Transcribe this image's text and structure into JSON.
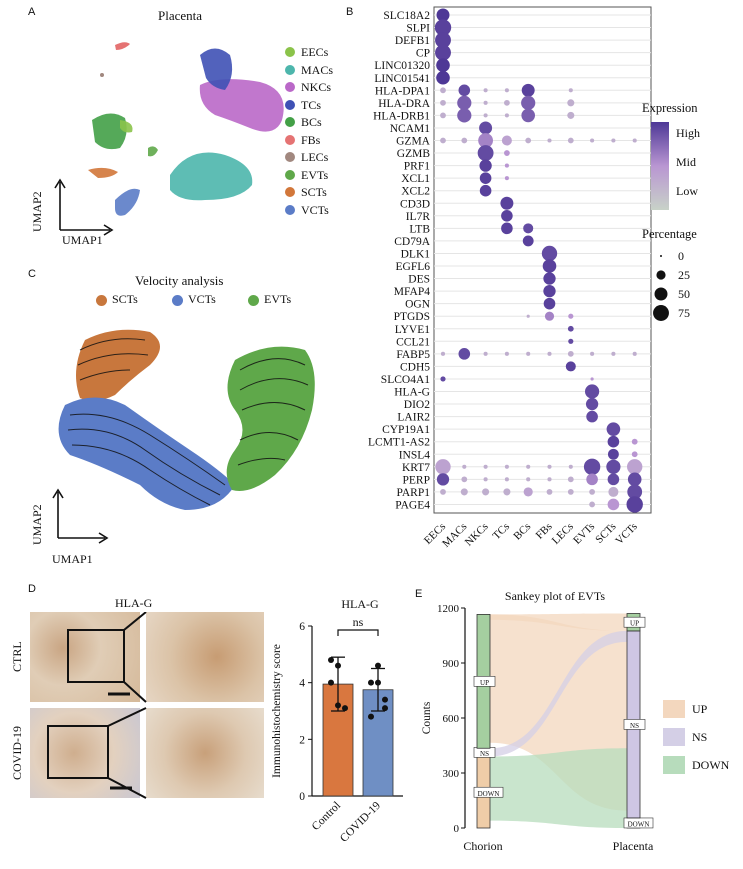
{
  "panels": {
    "A": {
      "letter": "A",
      "title": "Placenta",
      "xaxis": "UMAP1",
      "yaxis": "UMAP2",
      "legend": [
        {
          "name": "EECs",
          "color": "#8bc34a"
        },
        {
          "name": "MACs",
          "color": "#4db6ac"
        },
        {
          "name": "NKCs",
          "color": "#ba68c8"
        },
        {
          "name": "TCs",
          "color": "#3f51b5"
        },
        {
          "name": "BCs",
          "color": "#43a047"
        },
        {
          "name": "FBs",
          "color": "#e57373"
        },
        {
          "name": "LECs",
          "color": "#a1887f"
        },
        {
          "name": "EVTs",
          "color": "#5fa84a"
        },
        {
          "name": "SCTs",
          "color": "#d2773a"
        },
        {
          "name": "VCTs",
          "color": "#5b7cc7"
        }
      ]
    },
    "B": {
      "letter": "B"
    },
    "C": {
      "letter": "C",
      "title": "Velocity analysis",
      "xaxis": "UMAP1",
      "yaxis": "UMAP2",
      "legend": [
        {
          "name": "SCTs",
          "color": "#c8773d"
        },
        {
          "name": "VCTs",
          "color": "#5b7cc7"
        },
        {
          "name": "EVTs",
          "color": "#5fa84a"
        }
      ]
    },
    "D": {
      "letter": "D",
      "image_title": "HLA-G",
      "row_labels": [
        "CTRL",
        "COVID-19"
      ]
    },
    "E": {
      "letter": "E"
    }
  },
  "chart_data": [
    {
      "type": "dotplot",
      "id": "B",
      "genes": [
        "SLC18A2",
        "SLPI",
        "DEFB1",
        "CP",
        "LINC01320",
        "LINC01541",
        "HLA-DPA1",
        "HLA-DRA",
        "HLA-DRB1",
        "NCAM1",
        "GZMA",
        "GZMB",
        "PRF1",
        "XCL1",
        "XCL2",
        "CD3D",
        "IL7R",
        "LTB",
        "CD79A",
        "DLK1",
        "EGFL6",
        "DES",
        "MFAP4",
        "OGN",
        "PTGDS",
        "LYVE1",
        "CCL21",
        "FABP5",
        "CDH5",
        "SLCO4A1",
        "HLA-G",
        "DIO2",
        "LAIR2",
        "CYP19A1",
        "LCMT1-AS2",
        "INSL4",
        "KRT7",
        "PERP",
        "PARP1",
        "PAGE4"
      ],
      "cell_types": [
        "EECs",
        "MACs",
        "NKCs",
        "TCs",
        "BCs",
        "FBs",
        "LECs",
        "EVTs",
        "SCTs",
        "VCTs"
      ],
      "legend_expression": {
        "title": "Expression",
        "levels": [
          "High",
          "Mid",
          "Low"
        ]
      },
      "legend_percentage": {
        "title": "Percentage",
        "values": [
          "0",
          "25",
          "50",
          "75"
        ]
      },
      "dots": [
        [
          0,
          0,
          50,
          1.0
        ],
        [
          1,
          0,
          80,
          0.95
        ],
        [
          2,
          0,
          75,
          0.95
        ],
        [
          3,
          0,
          75,
          0.95
        ],
        [
          4,
          0,
          55,
          1.0
        ],
        [
          5,
          0,
          55,
          1.0
        ],
        [
          6,
          0,
          10,
          0.3
        ],
        [
          6,
          1,
          40,
          0.9
        ],
        [
          6,
          2,
          5,
          0.3
        ],
        [
          6,
          3,
          5,
          0.3
        ],
        [
          6,
          4,
          50,
          0.95
        ],
        [
          6,
          6,
          5,
          0.3
        ],
        [
          7,
          0,
          10,
          0.3
        ],
        [
          7,
          1,
          60,
          0.8
        ],
        [
          7,
          2,
          5,
          0.3
        ],
        [
          7,
          3,
          10,
          0.3
        ],
        [
          7,
          4,
          60,
          0.8
        ],
        [
          7,
          6,
          15,
          0.3
        ],
        [
          8,
          0,
          10,
          0.3
        ],
        [
          8,
          1,
          60,
          0.8
        ],
        [
          8,
          2,
          5,
          0.3
        ],
        [
          8,
          3,
          5,
          0.3
        ],
        [
          8,
          4,
          55,
          0.8
        ],
        [
          8,
          6,
          15,
          0.3
        ],
        [
          9,
          2,
          50,
          0.9
        ],
        [
          10,
          0,
          10,
          0.3
        ],
        [
          10,
          1,
          10,
          0.3
        ],
        [
          10,
          2,
          65,
          0.6
        ],
        [
          10,
          3,
          30,
          0.4
        ],
        [
          10,
          4,
          10,
          0.3
        ],
        [
          10,
          5,
          5,
          0.3
        ],
        [
          10,
          6,
          10,
          0.3
        ],
        [
          10,
          7,
          5,
          0.3
        ],
        [
          10,
          8,
          5,
          0.3
        ],
        [
          10,
          9,
          5,
          0.3
        ],
        [
          11,
          2,
          75,
          0.9
        ],
        [
          11,
          3,
          10,
          0.5
        ],
        [
          12,
          2,
          45,
          0.95
        ],
        [
          12,
          3,
          5,
          0.5
        ],
        [
          13,
          2,
          40,
          0.95
        ],
        [
          13,
          3,
          5,
          0.5
        ],
        [
          14,
          2,
          40,
          0.95
        ],
        [
          15,
          3,
          50,
          0.95
        ],
        [
          16,
          3,
          40,
          0.95
        ],
        [
          17,
          3,
          40,
          0.95
        ],
        [
          17,
          4,
          30,
          0.9
        ],
        [
          18,
          4,
          35,
          0.95
        ],
        [
          19,
          5,
          70,
          0.9
        ],
        [
          20,
          5,
          55,
          0.95
        ],
        [
          21,
          5,
          45,
          0.95
        ],
        [
          22,
          5,
          45,
          0.95
        ],
        [
          23,
          5,
          40,
          0.95
        ],
        [
          24,
          4,
          3,
          0.3
        ],
        [
          24,
          5,
          25,
          0.6
        ],
        [
          24,
          6,
          8,
          0.5
        ],
        [
          25,
          6,
          10,
          0.9
        ],
        [
          26,
          6,
          8,
          0.9
        ],
        [
          27,
          0,
          5,
          0.3
        ],
        [
          27,
          1,
          40,
          0.9
        ],
        [
          27,
          2,
          5,
          0.3
        ],
        [
          27,
          3,
          5,
          0.3
        ],
        [
          27,
          4,
          5,
          0.3
        ],
        [
          27,
          5,
          5,
          0.3
        ],
        [
          27,
          6,
          10,
          0.3
        ],
        [
          27,
          7,
          5,
          0.3
        ],
        [
          27,
          8,
          5,
          0.3
        ],
        [
          27,
          9,
          5,
          0.3
        ],
        [
          28,
          6,
          30,
          0.95
        ],
        [
          29,
          0,
          8,
          0.9
        ],
        [
          29,
          7,
          3,
          0.5
        ],
        [
          30,
          7,
          60,
          0.9
        ],
        [
          31,
          7,
          45,
          0.9
        ],
        [
          32,
          7,
          40,
          0.9
        ],
        [
          33,
          8,
          55,
          0.9
        ],
        [
          34,
          8,
          40,
          0.95
        ],
        [
          34,
          9,
          10,
          0.5
        ],
        [
          35,
          8,
          35,
          0.95
        ],
        [
          35,
          9,
          10,
          0.5
        ],
        [
          36,
          0,
          70,
          0.4
        ],
        [
          36,
          1,
          5,
          0.3
        ],
        [
          36,
          2,
          5,
          0.3
        ],
        [
          36,
          3,
          5,
          0.3
        ],
        [
          36,
          4,
          5,
          0.3
        ],
        [
          36,
          5,
          5,
          0.3
        ],
        [
          36,
          6,
          5,
          0.3
        ],
        [
          36,
          7,
          80,
          0.9
        ],
        [
          36,
          8,
          60,
          0.9
        ],
        [
          36,
          9,
          70,
          0.4
        ],
        [
          37,
          0,
          45,
          0.9
        ],
        [
          37,
          1,
          10,
          0.3
        ],
        [
          37,
          2,
          5,
          0.3
        ],
        [
          37,
          3,
          5,
          0.3
        ],
        [
          37,
          4,
          5,
          0.3
        ],
        [
          37,
          5,
          5,
          0.3
        ],
        [
          37,
          6,
          10,
          0.3
        ],
        [
          37,
          7,
          40,
          0.6
        ],
        [
          37,
          8,
          40,
          0.9
        ],
        [
          37,
          9,
          55,
          0.9
        ],
        [
          38,
          0,
          10,
          0.3
        ],
        [
          38,
          1,
          15,
          0.3
        ],
        [
          38,
          2,
          15,
          0.3
        ],
        [
          38,
          3,
          15,
          0.3
        ],
        [
          38,
          4,
          25,
          0.4
        ],
        [
          38,
          5,
          10,
          0.3
        ],
        [
          38,
          6,
          10,
          0.3
        ],
        [
          38,
          7,
          10,
          0.3
        ],
        [
          38,
          8,
          30,
          0.3
        ],
        [
          38,
          9,
          65,
          0.9
        ],
        [
          39,
          7,
          10,
          0.3
        ],
        [
          39,
          8,
          40,
          0.5
        ],
        [
          39,
          9,
          80,
          0.95
        ]
      ]
    },
    {
      "type": "bar",
      "id": "D",
      "title": "HLA-G",
      "ylabel": "Immunohistochemistry score",
      "ylim": [
        0,
        6
      ],
      "yticks": [
        "0",
        "2",
        "4",
        "6"
      ],
      "categories": [
        "Control",
        "COVID-19"
      ],
      "values": [
        3.95,
        3.75
      ],
      "errors": [
        0.95,
        0.75
      ],
      "points": [
        [
          4.8,
          3.2,
          3.1,
          4.0,
          4.6
        ],
        [
          4.0,
          4.6,
          3.1,
          2.8,
          4.0,
          3.4
        ]
      ],
      "colors": [
        "#d9773f",
        "#6f8fc4"
      ],
      "annotation": "ns"
    },
    {
      "type": "sankey",
      "id": "E",
      "title": "Sankey plot of EVTs",
      "ylabel": "Counts",
      "yticks": [
        "0",
        "300",
        "600",
        "900",
        "1200"
      ],
      "ylim": [
        0,
        1200
      ],
      "xlabels": [
        "Chorion",
        "Placenta"
      ],
      "left": [
        {
          "name": "DOWN",
          "value": 390
        },
        {
          "name": "NS",
          "value": 45
        },
        {
          "name": "UP",
          "value": 730
        }
      ],
      "right": [
        {
          "name": "DOWN",
          "value": 55
        },
        {
          "name": "NS",
          "value": 1020
        },
        {
          "name": "UP",
          "value": 95
        }
      ],
      "legend": [
        {
          "name": "UP",
          "color": "#f3d7be"
        },
        {
          "name": "NS",
          "color": "#d4cfe6"
        },
        {
          "name": "DOWN",
          "color": "#b7dcbc"
        }
      ]
    }
  ]
}
